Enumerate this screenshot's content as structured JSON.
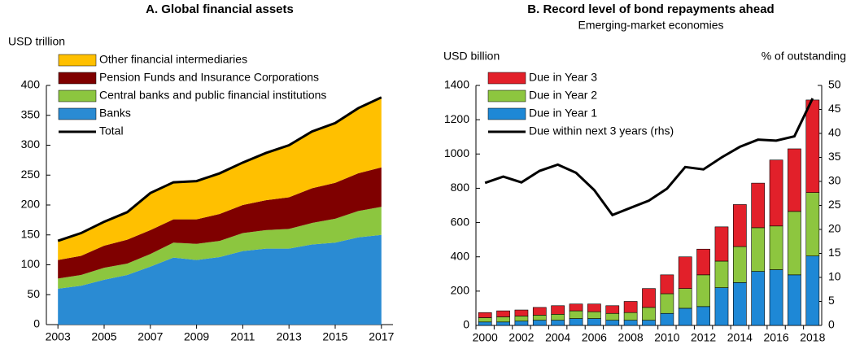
{
  "chart_data": [
    {
      "type": "area",
      "title": "A. Global financial assets",
      "y_label": "USD trillion",
      "x": [
        2003,
        2004,
        2005,
        2006,
        2007,
        2008,
        2009,
        2010,
        2011,
        2012,
        2013,
        2014,
        2015,
        2016,
        2017
      ],
      "xlim": [
        2002.5,
        2017.5
      ],
      "xticks": [
        2003,
        2005,
        2007,
        2009,
        2011,
        2013,
        2015,
        2017
      ],
      "ylim": [
        0,
        400
      ],
      "yticks": [
        0,
        50,
        100,
        150,
        200,
        250,
        300,
        350,
        400
      ],
      "series": [
        {
          "name": "Banks",
          "color": "#2a8bd3",
          "values": [
            60,
            65,
            75,
            83,
            97,
            112,
            108,
            113,
            123,
            127,
            127,
            134,
            137,
            146,
            150
          ]
        },
        {
          "name": "Central banks and public financial institutions",
          "color": "#8cc63f",
          "values": [
            17,
            18,
            20,
            19,
            21,
            25,
            27,
            27,
            30,
            31,
            33,
            36,
            40,
            44,
            47
          ]
        },
        {
          "name": "Pension Funds and Insurance Corporations",
          "color": "#7f0000",
          "values": [
            31,
            32,
            37,
            40,
            40,
            39,
            41,
            45,
            47,
            50,
            53,
            58,
            60,
            63,
            66
          ]
        },
        {
          "name": "Other financial intermediaries",
          "color": "#ffc000",
          "values": [
            32,
            38,
            40,
            46,
            62,
            62,
            64,
            68,
            71,
            79,
            87,
            95,
            100,
            109,
            117
          ]
        }
      ],
      "line": {
        "name": "Total",
        "color": "#000000",
        "values": [
          140,
          153,
          172,
          188,
          220,
          238,
          240,
          253,
          271,
          287,
          300,
          323,
          337,
          362,
          380
        ]
      }
    },
    {
      "type": "bar",
      "title": "B. Record level of bond repayments ahead",
      "subtitle": "Emerging-market economies",
      "y_label": "USD billion",
      "y2_label": "% of outstanding",
      "categories": [
        "2000",
        null,
        "2002",
        null,
        "2004",
        null,
        "2006",
        null,
        "2008",
        null,
        "2010",
        null,
        "2012",
        null,
        "2014",
        null,
        "2016",
        null,
        "2018"
      ],
      "ylim": [
        0,
        1400
      ],
      "yticks": [
        0,
        200,
        400,
        600,
        800,
        1000,
        1200,
        1400
      ],
      "y2lim": [
        0,
        50
      ],
      "y2ticks": [
        0,
        5,
        10,
        15,
        20,
        25,
        30,
        35,
        40,
        45,
        50
      ],
      "series": [
        {
          "name": "Due in Year 1",
          "color": "#1e88d6",
          "values": [
            20,
            20,
            25,
            30,
            30,
            40,
            40,
            30,
            30,
            30,
            70,
            100,
            110,
            220,
            250,
            315,
            325,
            295,
            405
          ]
        },
        {
          "name": "Due in Year 2",
          "color": "#8dc63f",
          "values": [
            25,
            30,
            30,
            30,
            35,
            45,
            40,
            40,
            45,
            75,
            115,
            115,
            185,
            155,
            210,
            255,
            255,
            370,
            370
          ]
        },
        {
          "name": "Due in Year 3",
          "color": "#e2202a",
          "values": [
            30,
            35,
            35,
            45,
            50,
            40,
            45,
            45,
            65,
            110,
            110,
            185,
            150,
            200,
            245,
            260,
            385,
            365,
            540
          ]
        }
      ],
      "line": {
        "name": "Due within next 3 years (rhs)",
        "color": "#000000",
        "axis": "y2",
        "values": [
          29.7,
          31,
          29.8,
          32.2,
          33.5,
          31.8,
          28.2,
          23,
          24.5,
          26,
          28.5,
          33,
          32.5,
          35,
          37.2,
          38.7,
          38.5,
          39.4,
          47.3
        ]
      }
    }
  ]
}
